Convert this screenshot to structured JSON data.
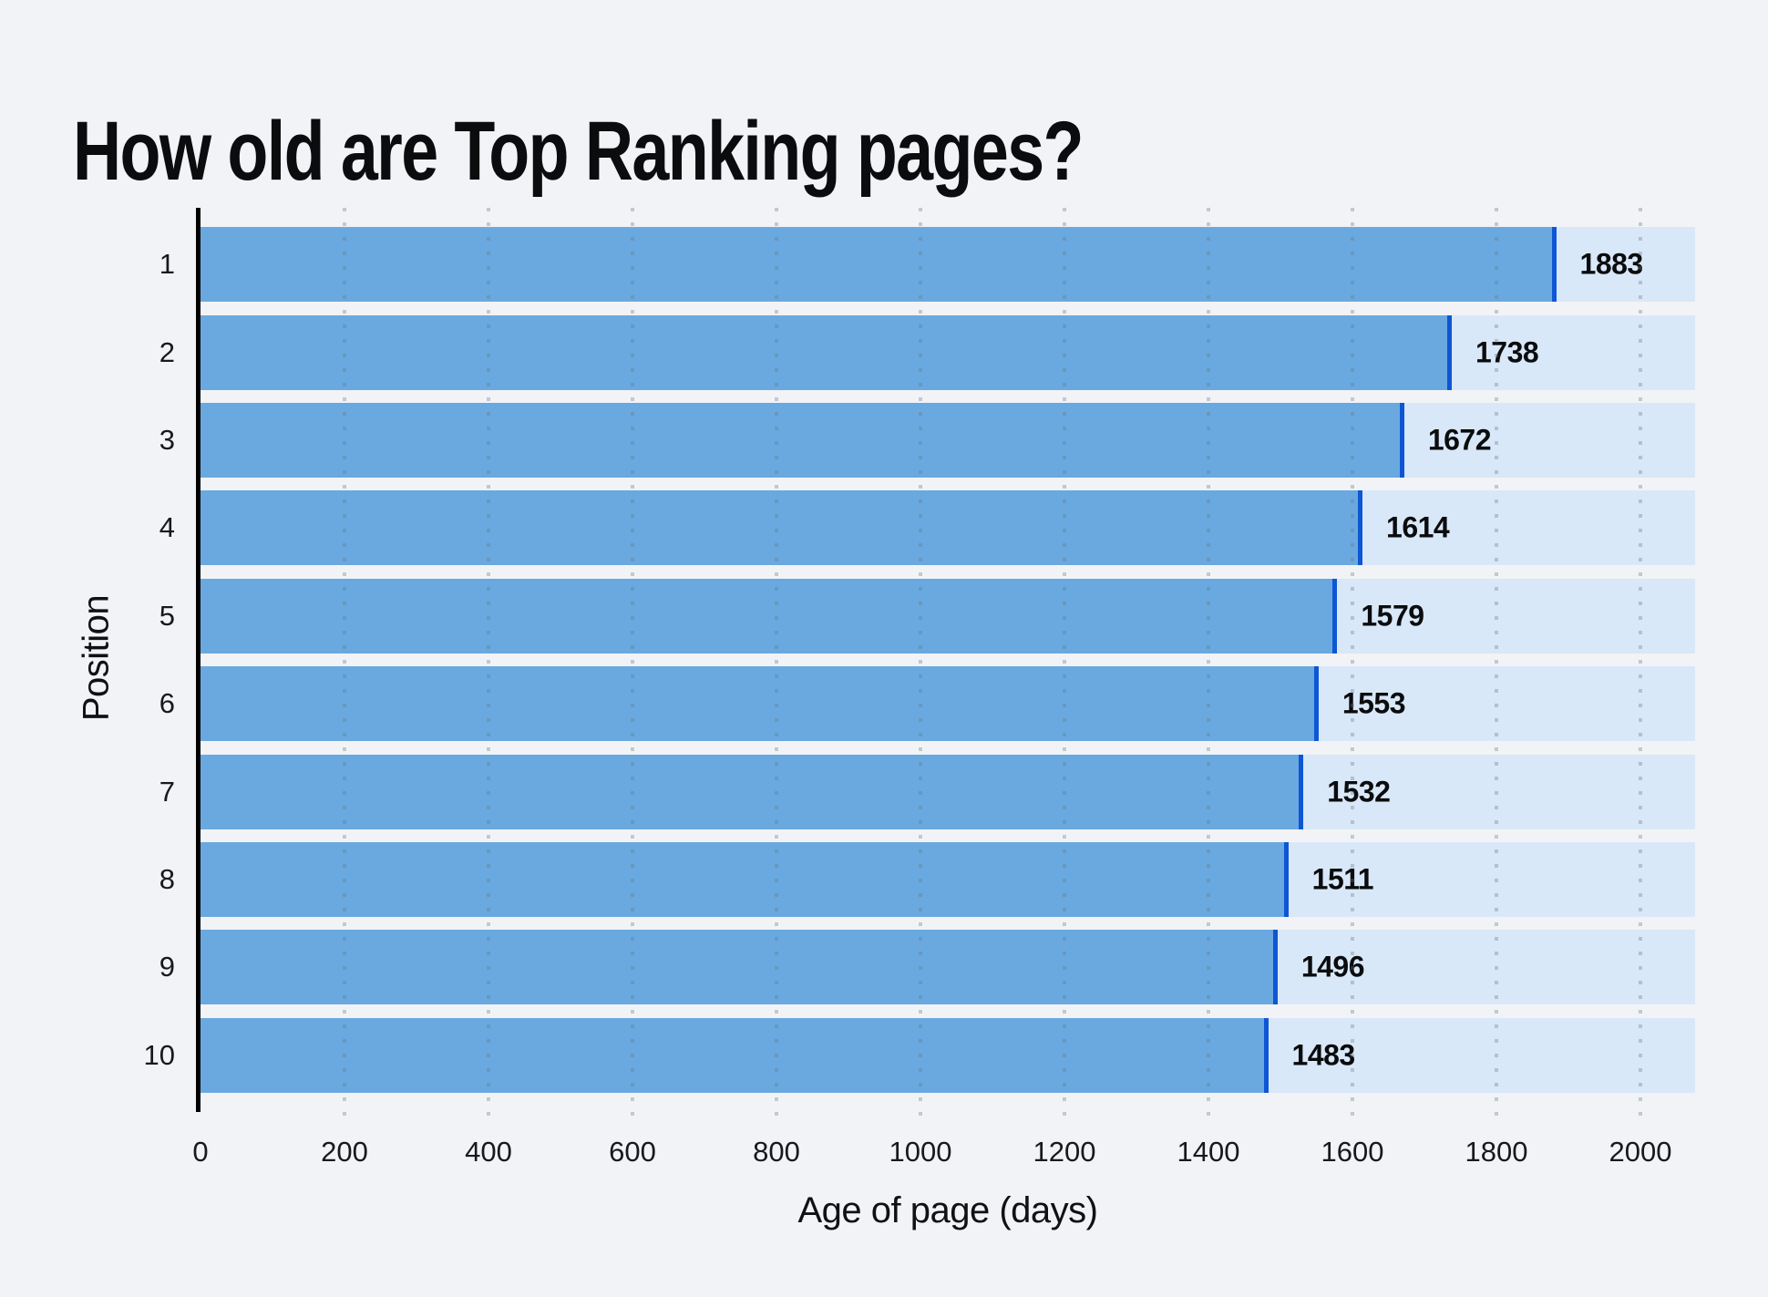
{
  "chart_data": {
    "type": "bar",
    "orientation": "horizontal",
    "title": "How old are Top Ranking pages?",
    "xlabel": "Age of page (days)",
    "ylabel": "Position",
    "categories": [
      "1",
      "2",
      "3",
      "4",
      "5",
      "6",
      "7",
      "8",
      "9",
      "10"
    ],
    "values": [
      1883,
      1738,
      1672,
      1614,
      1579,
      1553,
      1532,
      1511,
      1496,
      1483
    ],
    "xlim": [
      0,
      2076
    ],
    "xticks": [
      0,
      200,
      400,
      600,
      800,
      1000,
      1200,
      1400,
      1600,
      1800,
      2000
    ],
    "grid": "dotted-vertical",
    "legend": "none",
    "colors": {
      "background": "#F2F3F6",
      "bar_fill": "#69A9DF",
      "bar_edge": "#0E56D4",
      "bar_track": "#D9E8F8",
      "gridline": "rgba(108,118,130,0.35)",
      "axis_line": "#000000",
      "text": "#0B0C0E"
    }
  }
}
